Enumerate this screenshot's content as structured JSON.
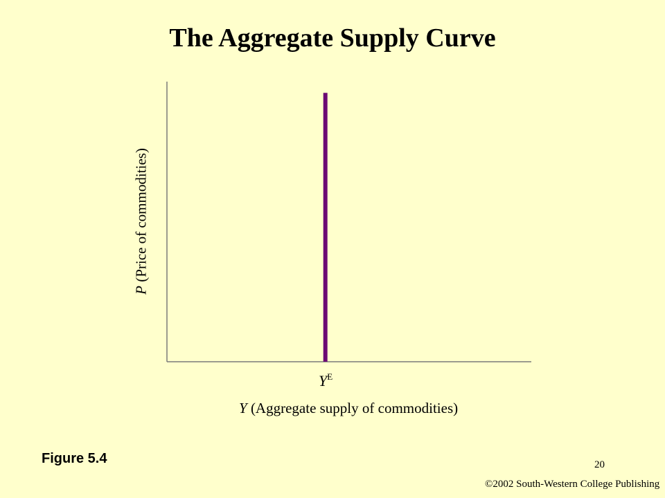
{
  "chart_data": {
    "type": "line",
    "title": "The Aggregate Supply Curve",
    "ylabel_var": "P",
    "ylabel_text": " (Price of commodities)",
    "xlabel_var": "Y",
    "xlabel_text": " (Aggregate supply of commodities)",
    "x_tick": {
      "base": "Y",
      "sup": "E"
    },
    "series": [
      {
        "x": [
          1,
          1
        ],
        "y": [
          0,
          0.96
        ],
        "color": "#6b0a73"
      }
    ],
    "xlim": [
      0,
      2.3
    ],
    "ylim": [
      0,
      1
    ],
    "grid": false
  },
  "figure_label": "Figure 5.4",
  "page_number": "20",
  "copyright": "©2002 South-Western College Publishing"
}
